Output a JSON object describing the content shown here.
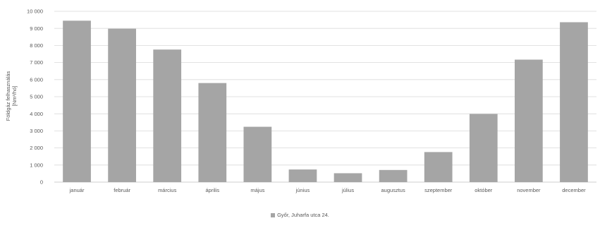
{
  "chart_data": {
    "type": "bar",
    "title": "",
    "xlabel": "",
    "ylabel_lines": [
      "Földgáz felhasználás",
      "[Nm³/hó]"
    ],
    "ylim": [
      0,
      10000
    ],
    "ytick_step": 1000,
    "ytick_labels": [
      "0",
      "1 000",
      "2 000",
      "3 000",
      "4 000",
      "5 000",
      "6 000",
      "7 000",
      "8 000",
      "9 000",
      "10 000"
    ],
    "grid": true,
    "legend_position": "bottom",
    "categories": [
      "január",
      "február",
      "március",
      "április",
      "május",
      "június",
      "július",
      "augusztus",
      "szeptember",
      "október",
      "november",
      "december"
    ],
    "series": [
      {
        "name": "Győr, Juharfa utca 24.",
        "color": "#a5a5a5",
        "values": [
          9450,
          8980,
          7760,
          5800,
          3240,
          740,
          520,
          710,
          1760,
          3990,
          7170,
          9360
        ]
      }
    ]
  }
}
